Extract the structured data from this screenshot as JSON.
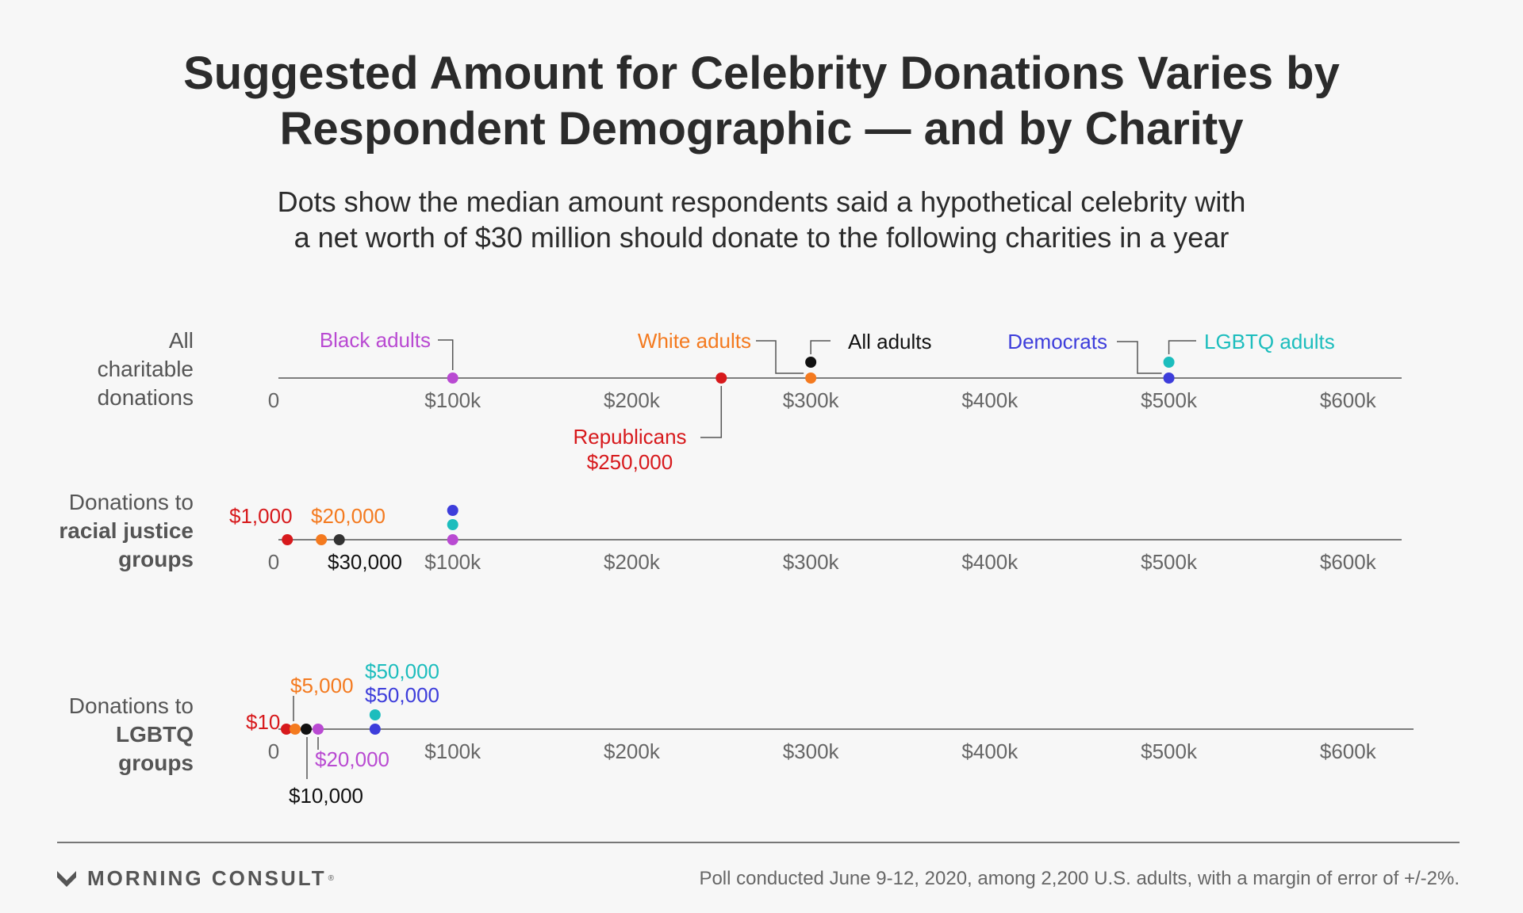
{
  "title_line1": "Suggested Amount for Celebrity Donations Varies by",
  "title_line2": "Respondent Demographic — and by Charity",
  "subtitle_line1": "Dots show the median amount respondents said a hypothetical celebrity with",
  "subtitle_line2": "a net worth of $30 million should donate to the following charities in a year",
  "colors": {
    "All adults": "#111111",
    "Black adults": "#b94ad2",
    "White adults": "#f47a1f",
    "Republicans": "#d7191c",
    "Democrats": "#3d3ddb",
    "LGBTQ adults": "#1cbdbd",
    "axis": "#555555",
    "tick_label": "#666666"
  },
  "chart_data": {
    "type": "dot",
    "x_tick_labels": [
      "0",
      "$100k",
      "$200k",
      "$300k",
      "$400k",
      "$500k",
      "$600k"
    ],
    "x_ticks": [
      0,
      100000,
      200000,
      300000,
      400000,
      500000,
      600000
    ],
    "xlim": [
      0,
      630000
    ],
    "rows": [
      {
        "label_lines": [
          {
            "text": "All",
            "bold": false
          },
          {
            "text": "charitable",
            "bold": false
          },
          {
            "text": "donations",
            "bold": false
          }
        ],
        "points": [
          {
            "group": "Black adults",
            "value": 100000,
            "label": "Black adults"
          },
          {
            "group": "Republicans",
            "value": 250000,
            "label": "Republicans",
            "label2": "$250,000"
          },
          {
            "group": "White adults",
            "value": 300000,
            "label": "White adults"
          },
          {
            "group": "All adults",
            "value": 300000,
            "label": "All adults"
          },
          {
            "group": "Democrats",
            "value": 500000,
            "label": "Democrats"
          },
          {
            "group": "LGBTQ adults",
            "value": 500000,
            "label": "LGBTQ adults"
          }
        ]
      },
      {
        "label_lines": [
          {
            "text": "Donations to",
            "bold": false
          },
          {
            "text": "racial justice",
            "bold": true
          },
          {
            "text": "groups",
            "bold": true
          }
        ],
        "points": [
          {
            "group": "Republicans",
            "value": 1000,
            "label": "$1,000"
          },
          {
            "group": "White adults",
            "value": 20000,
            "label": "$20,000"
          },
          {
            "group": "All adults",
            "value": 30000,
            "label": "$30,000"
          },
          {
            "group": "Black adults",
            "value": 100000
          },
          {
            "group": "LGBTQ adults",
            "value": 100000
          },
          {
            "group": "Democrats",
            "value": 100000
          }
        ]
      },
      {
        "label_lines": [
          {
            "text": "Donations to",
            "bold": false
          },
          {
            "text": "LGBTQ",
            "bold": true
          },
          {
            "text": "groups",
            "bold": true
          }
        ],
        "points": [
          {
            "group": "Republicans",
            "value": 10,
            "label": "$10"
          },
          {
            "group": "White adults",
            "value": 5000,
            "label": "$5,000"
          },
          {
            "group": "All adults",
            "value": 10000,
            "label": "$10,000"
          },
          {
            "group": "Black adults",
            "value": 20000,
            "label": "$20,000"
          },
          {
            "group": "LGBTQ adults",
            "value": 50000,
            "label": "$50,000"
          },
          {
            "group": "Democrats",
            "value": 50000,
            "label": "$50,000"
          }
        ]
      }
    ]
  },
  "footer": {
    "brand": "MORNING CONSULT",
    "source": "Poll conducted June 9-12, 2020, among 2,200 U.S. adults, with a margin of error of +/-2%."
  }
}
